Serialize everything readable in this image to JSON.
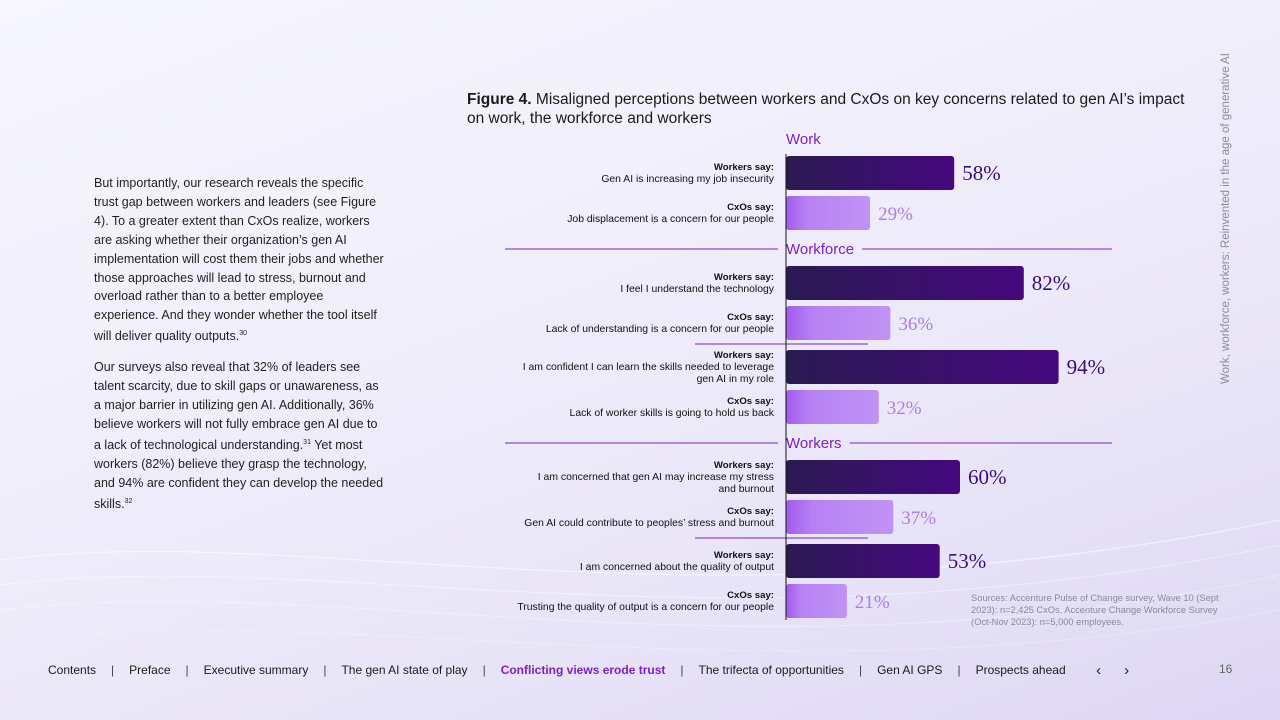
{
  "figure": {
    "title_bold": "Figure 4.",
    "title_rest": " Misaligned perceptions between workers and CxOs on key concerns related to gen AI’s impact on work, the workforce and workers"
  },
  "side_title": "Work, workforce, workers: Reinvented in the age of generative AI",
  "body": {
    "p1": "But importantly, our research reveals the specific trust gap between workers and leaders (see Figure 4). To a greater extent than CxOs realize, workers are asking whether their organization’s gen AI implementation will cost them their jobs and whether those approaches will lead to stress, burnout and overload rather than to a better employee experience. And they wonder whether the tool itself will deliver quality outputs.",
    "p1_ref": "30",
    "p2": "Our surveys also reveal that 32% of leaders see talent scarcity, due to skill gaps or unawareness, as a major barrier in utilizing gen AI. Additionally, 36% believe workers will not fully embrace gen AI due to a lack of technological understanding.",
    "p2_ref": "31",
    "p3": " Yet most workers (82%) believe they grasp the technology, and 94% are confident they can develop the needed skills.",
    "p3_ref": "32"
  },
  "chart_data": {
    "type": "bar",
    "orientation": "horizontal",
    "value_unit": "%",
    "xlim": [
      0,
      100
    ],
    "colors": {
      "workers": "#3f0b7c",
      "cxos": "#b47ef0",
      "section": "#7d1fc2"
    },
    "sections": [
      {
        "name": "Work",
        "groups": [
          {
            "bars": [
              {
                "who": "Workers say:",
                "lines": [
                  "Gen AI is increasing my job insecurity"
                ],
                "value": 58,
                "value_label": "58%",
                "kind": "workers"
              },
              {
                "who": "CxOs say:",
                "lines": [
                  "Job displacement is a concern for our people"
                ],
                "value": 29,
                "value_label": "29%",
                "kind": "cxos"
              }
            ]
          }
        ]
      },
      {
        "name": "Workforce",
        "groups": [
          {
            "bars": [
              {
                "who": "Workers say:",
                "lines": [
                  "I feel I understand the technology"
                ],
                "value": 82,
                "value_label": "82%",
                "kind": "workers"
              },
              {
                "who": "CxOs say:",
                "lines": [
                  "Lack of understanding is a concern for our people"
                ],
                "value": 36,
                "value_label": "36%",
                "kind": "cxos"
              }
            ]
          },
          {
            "bars": [
              {
                "who": "Workers say:",
                "lines": [
                  "I am confident I can learn the skills needed to leverage",
                  "gen AI in my role"
                ],
                "value": 94,
                "value_label": "94%",
                "kind": "workers"
              },
              {
                "who": "CxOs say:",
                "lines": [
                  "Lack of worker skills is going to hold us back"
                ],
                "value": 32,
                "value_label": "32%",
                "kind": "cxos"
              }
            ]
          }
        ]
      },
      {
        "name": "Workers",
        "groups": [
          {
            "bars": [
              {
                "who": "Workers say:",
                "lines": [
                  "I am concerned that gen AI may increase my stress",
                  "and burnout"
                ],
                "value": 60,
                "value_label": "60%",
                "kind": "workers"
              },
              {
                "who": "CxOs say:",
                "lines": [
                  "Gen AI could contribute to peoples’ stress and burnout"
                ],
                "value": 37,
                "value_label": "37%",
                "kind": "cxos"
              }
            ]
          },
          {
            "bars": [
              {
                "who": "Workers say:",
                "lines": [
                  "I am concerned about the quality of output"
                ],
                "value": 53,
                "value_label": "53%",
                "kind": "workers"
              },
              {
                "who": "CxOs say:",
                "lines": [
                  "Trusting the quality of output is a concern for our people"
                ],
                "value": 21,
                "value_label": "21%",
                "kind": "cxos"
              }
            ]
          }
        ]
      }
    ]
  },
  "sources": "Sources: Accenture Pulse of Change survey, Wave 10 (Sept 2023): n=2,425 CxOs. Accenture Change Workforce Survey (Oct-Nov 2023): n=5,000 employees.",
  "footer": {
    "items": [
      "Contents",
      "Preface",
      "Executive summary",
      "The gen AI state of play",
      "Conflicting views erode trust",
      "The trifecta of opportunities",
      "Gen AI GPS",
      "Prospects ahead"
    ],
    "active_index": 4,
    "prev_icon": "chevron-left-icon",
    "next_icon": "chevron-right-icon",
    "page_number": "16"
  }
}
